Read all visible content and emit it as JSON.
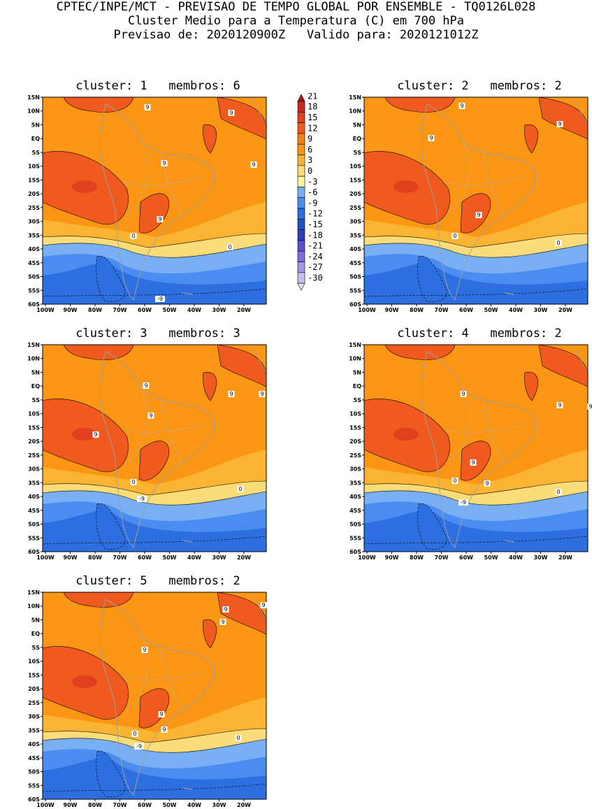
{
  "header": {
    "line1": "CPTEC/INPE/MCT - PREVISAO DE TEMPO GLOBAL POR ENSEMBLE - TQ0126L028",
    "line2": "Cluster Medio para a Temperatura (C) em 700 hPa",
    "line3": "Previsao de: 2020120900Z   Valido para: 2020121012Z"
  },
  "map": {
    "lat_labels": [
      "15N",
      "10N",
      "5N",
      "EQ",
      "5S",
      "10S",
      "15S",
      "20S",
      "25S",
      "30S",
      "35S",
      "40S",
      "45S",
      "50S",
      "55S",
      "60S"
    ],
    "lon_labels": [
      "100W",
      "90W",
      "80W",
      "70W",
      "60W",
      "50W",
      "40W",
      "30W",
      "20W"
    ]
  },
  "colorbar": {
    "levels": [
      "21",
      "18",
      "15",
      "12",
      "9",
      "6",
      "3",
      "0",
      "-3",
      "-6",
      "-9",
      "-12",
      "-15",
      "-18",
      "-21",
      "-24",
      "-27",
      "-30"
    ],
    "colors": [
      "#a8141e",
      "#c8281e",
      "#e1401e",
      "#f05a1e",
      "#fa7d14",
      "#fa9614",
      "#fab432",
      "#fadc78",
      "#fff5a0",
      "#78aff5",
      "#4b8cf0",
      "#2d6ee1",
      "#1e50c8",
      "#323cc3",
      "#5a50d2",
      "#7d6edc",
      "#a596e6",
      "#c8beeb",
      "#e6e1f5"
    ]
  },
  "panels": [
    {
      "title": "cluster: 1   membros: 6",
      "contours": [
        "9",
        "9",
        "9",
        "9",
        "9",
        "0",
        "0",
        "-9"
      ]
    },
    {
      "title": "cluster: 2   membros: 2",
      "contours": [
        "9",
        "9",
        "9",
        "9",
        "9",
        "0",
        "0"
      ]
    },
    {
      "title": "cluster: 3   membros: 3",
      "contours": [
        "9",
        "9",
        "9",
        "9",
        "9",
        "0",
        "0",
        "-9"
      ]
    },
    {
      "title": "cluster: 4   membros: 2",
      "contours": [
        "9",
        "9",
        "9",
        "9",
        "9",
        "0",
        "0",
        "-9"
      ]
    },
    {
      "title": "cluster: 5   membros: 2",
      "contours": [
        "9",
        "9",
        "9",
        "9",
        "9",
        "9",
        "0",
        "0",
        "-9"
      ]
    }
  ]
}
